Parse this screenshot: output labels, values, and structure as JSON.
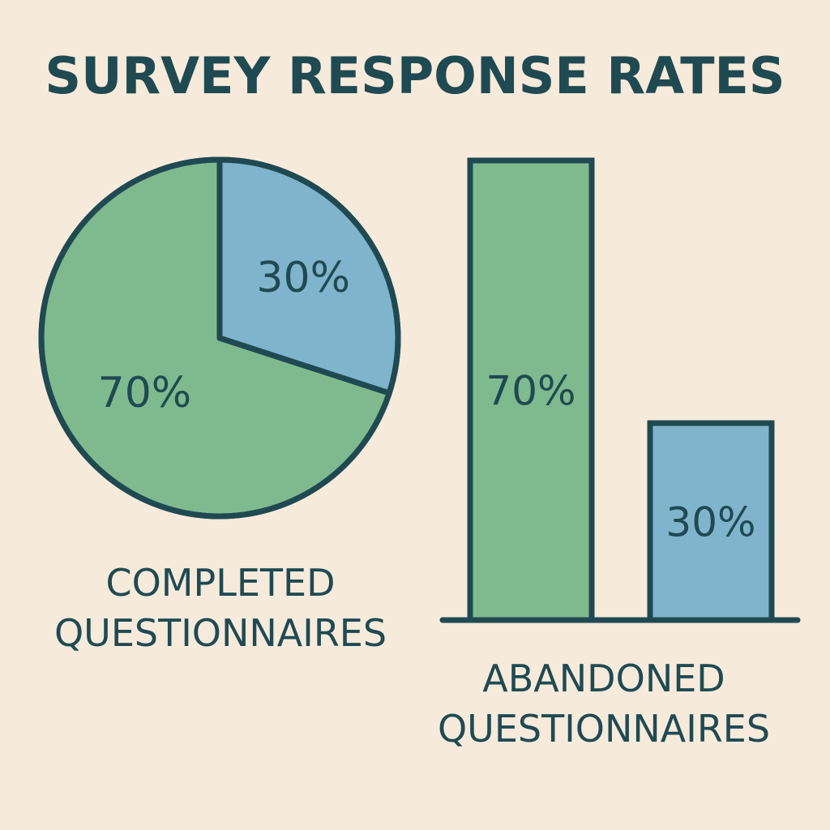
{
  "title": "SURVEY RESPONSE RATES",
  "colors": {
    "background": "#f6eadb",
    "ink": "#1f4a52",
    "green": "#7fba8e",
    "blue": "#7fb4cc"
  },
  "chart_data": [
    {
      "type": "pie",
      "slices": [
        {
          "value": 70,
          "label": "70%",
          "color": "#7fba8e"
        },
        {
          "value": 30,
          "label": "30%",
          "color": "#7fb4cc"
        }
      ],
      "caption": [
        "COMPLETED",
        "QUESTIONNAIRES"
      ]
    },
    {
      "type": "bar",
      "values": [
        70,
        30
      ],
      "labels": [
        "70%",
        "30%"
      ],
      "colors": [
        "#7fba8e",
        "#7fb4cc"
      ],
      "ylim": [
        0,
        70
      ],
      "caption": [
        "ABANDONED",
        "QUESTIONNAIRES"
      ]
    }
  ]
}
